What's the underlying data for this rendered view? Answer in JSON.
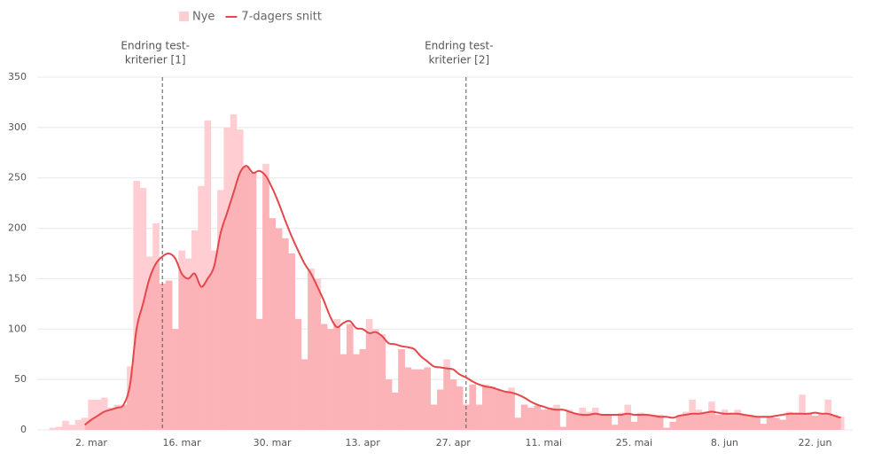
{
  "chart_data": {
    "type": "bar",
    "categories": [
      null,
      null,
      null,
      null,
      null,
      null,
      "2. mar",
      null,
      null,
      null,
      null,
      null,
      null,
      null,
      null,
      null,
      null,
      null,
      null,
      null,
      "16. mar",
      null,
      null,
      null,
      null,
      null,
      null,
      null,
      null,
      null,
      null,
      null,
      null,
      null,
      "30. mar",
      null,
      null,
      null,
      null,
      null,
      null,
      null,
      null,
      null,
      null,
      null,
      null,
      null,
      "13. apr",
      null,
      null,
      null,
      null,
      null,
      null,
      null,
      null,
      null,
      null,
      null,
      null,
      null,
      "27. apr",
      null,
      null,
      null,
      null,
      null,
      null,
      null,
      null,
      null,
      null,
      null,
      null,
      null,
      "11. mai",
      null,
      null,
      null,
      null,
      null,
      null,
      null,
      null,
      null,
      null,
      null,
      null,
      null,
      "25. mai",
      null,
      null,
      null,
      null,
      null,
      null,
      null,
      null,
      null,
      null,
      null,
      null,
      null,
      "8. jun",
      null,
      null,
      null,
      null,
      null,
      null,
      null,
      null,
      null,
      null,
      null,
      null,
      null,
      "22. jun",
      null,
      null,
      null,
      null
    ],
    "series": [
      {
        "name": "Nye",
        "type": "bar",
        "color": "#ffcdd2",
        "values": [
          2,
          3,
          9,
          5,
          10,
          12,
          30,
          30,
          32,
          22,
          25,
          25,
          63,
          247,
          240,
          172,
          205,
          145,
          148,
          100,
          178,
          170,
          198,
          242,
          307,
          178,
          238,
          300,
          313,
          298,
          262,
          255,
          110,
          264,
          210,
          200,
          190,
          175,
          110,
          70,
          160,
          150,
          105,
          100,
          110,
          75,
          105,
          75,
          80,
          110,
          100,
          95,
          50,
          37,
          80,
          62,
          60,
          60,
          62,
          25,
          40,
          70,
          50,
          43,
          25,
          45,
          25,
          45,
          43,
          40,
          38,
          42,
          12,
          25,
          22,
          24,
          20,
          22,
          25,
          3,
          20,
          17,
          22,
          18,
          22,
          15,
          14,
          5,
          17,
          25,
          8,
          17,
          15,
          15,
          15,
          2,
          8,
          15,
          18,
          30,
          20,
          17,
          28,
          15,
          20,
          17,
          20,
          15,
          15,
          12,
          6,
          13,
          12,
          10,
          18,
          17,
          35,
          17,
          14,
          15,
          30,
          15,
          13
        ]
      },
      {
        "name": "7-dagers snitt",
        "type": "line",
        "color": "#e5474b",
        "fill": "#fbb3b7",
        "values": [
          null,
          null,
          null,
          null,
          null,
          5,
          10,
          14,
          18,
          20,
          22,
          25,
          45,
          100,
          125,
          150,
          165,
          172,
          175,
          170,
          155,
          150,
          155,
          142,
          150,
          162,
          195,
          215,
          235,
          255,
          262,
          255,
          257,
          252,
          240,
          225,
          208,
          192,
          178,
          165,
          155,
          142,
          128,
          112,
          102,
          106,
          108,
          101,
          100,
          96,
          97,
          93,
          86,
          85,
          83,
          82,
          80,
          73,
          68,
          63,
          62,
          61,
          60,
          55,
          52,
          48,
          45,
          43,
          42,
          40,
          38,
          37,
          35,
          32,
          28,
          25,
          23,
          21,
          20,
          20,
          18,
          16,
          15,
          15,
          16,
          15,
          15,
          15,
          15,
          16,
          15,
          15,
          15,
          14,
          13,
          13,
          12,
          14,
          15,
          16,
          16,
          17,
          18,
          17,
          16,
          16,
          16,
          15,
          14,
          13,
          13,
          13,
          14,
          15,
          16,
          16,
          16,
          16,
          17,
          16,
          16,
          14,
          12
        ]
      }
    ],
    "annotations": [
      {
        "lines": [
          "Endring test-",
          "kriterier [1]"
        ],
        "x": 17
      },
      {
        "lines": [
          "Endring test-",
          "kriterier [2]"
        ],
        "x": 64
      }
    ],
    "ylim": [
      0,
      350
    ],
    "yticks": [
      0,
      50,
      100,
      150,
      200,
      250,
      300,
      350
    ],
    "grid": true,
    "legend": "top"
  }
}
